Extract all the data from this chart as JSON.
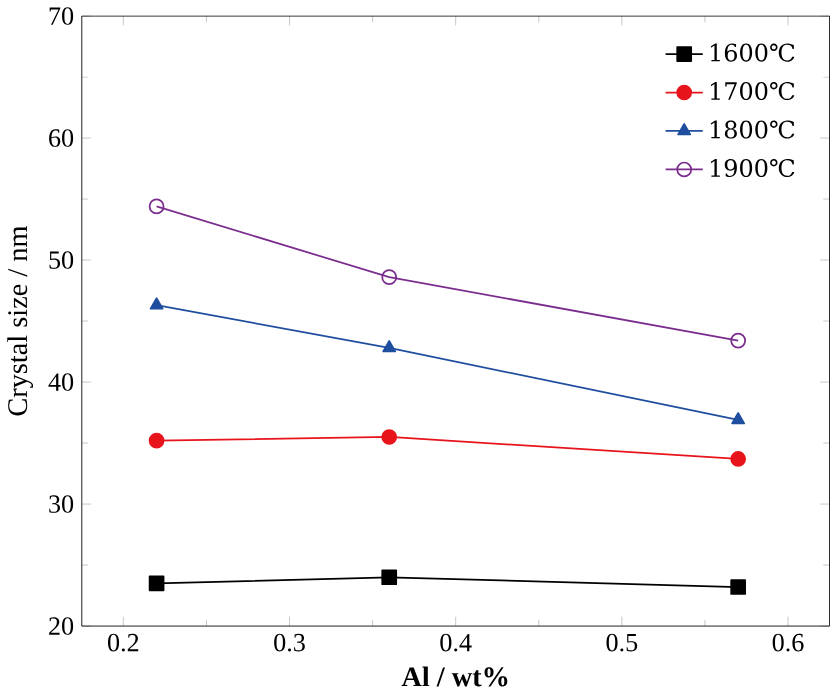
{
  "chart_data": {
    "type": "line",
    "xlabel": "Al / wt%",
    "ylabel": "Crystal size / nm",
    "x": [
      0.22,
      0.36,
      0.57
    ],
    "series": [
      {
        "name": "1600℃",
        "color": "#000000",
        "marker": "square",
        "values": [
          23.5,
          24.0,
          23.2
        ]
      },
      {
        "name": "1700℃",
        "color": "#e8141c",
        "marker": "circle",
        "values": [
          35.2,
          35.5,
          33.7
        ]
      },
      {
        "name": "1800℃",
        "color": "#1f4e9f",
        "marker": "triangle",
        "values": [
          46.3,
          42.8,
          36.9
        ]
      },
      {
        "name": "1900℃",
        "color": "#7b2d8e",
        "marker": "open circle",
        "values": [
          54.4,
          48.6,
          43.4
        ]
      }
    ],
    "xlim": [
      0.175,
      0.625
    ],
    "ylim": [
      20,
      70
    ],
    "xticks": [
      0.2,
      0.3,
      0.4,
      0.5,
      0.6
    ],
    "yticks": [
      20,
      30,
      40,
      50,
      60,
      70
    ],
    "legend": "top right",
    "grid": false
  }
}
